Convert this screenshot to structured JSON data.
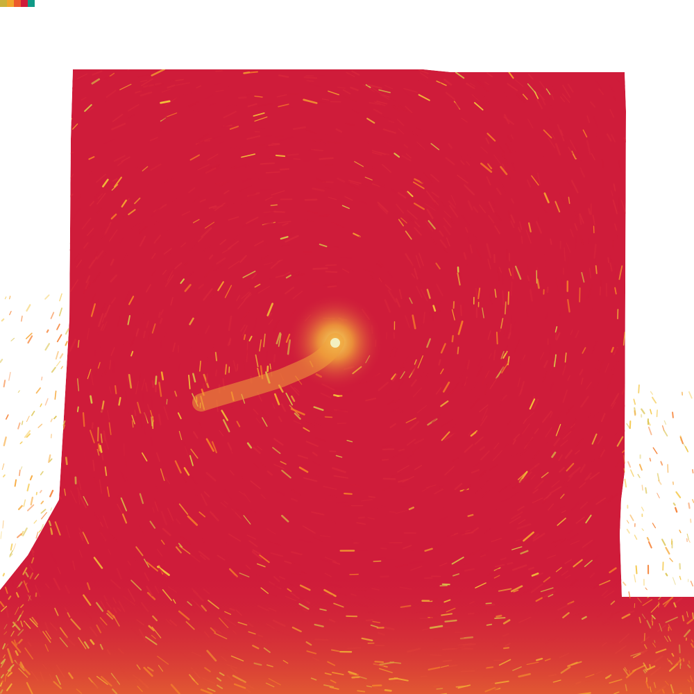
{
  "palette": {
    "swatches": [
      {
        "name": "olive-yellow",
        "color": "#c9b13b"
      },
      {
        "name": "amber",
        "color": "#f1a52b"
      },
      {
        "name": "orange-red",
        "color": "#ec5b2c"
      },
      {
        "name": "crimson",
        "color": "#cf1c3a"
      },
      {
        "name": "teal",
        "color": "#0f9a87"
      }
    ]
  },
  "artwork": {
    "background": "#ffffff",
    "base_color": "#cf1c3a",
    "highlight_colors": [
      "#f57a2a",
      "#f6a431",
      "#f3c33a",
      "#d9c24a"
    ],
    "vortex_center_color": "#e8d24a"
  }
}
